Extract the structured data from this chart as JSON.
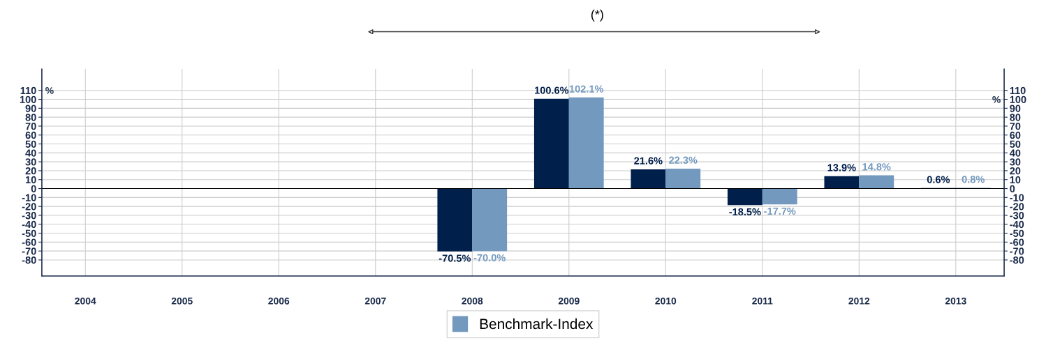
{
  "chart_data": {
    "type": "bar",
    "categories": [
      "2004",
      "2005",
      "2006",
      "2007",
      "2008",
      "2009",
      "2010",
      "2011",
      "2012",
      "2013"
    ],
    "series": [
      {
        "color": "#001f4b",
        "values": [
          null,
          null,
          null,
          null,
          -70.5,
          100.6,
          21.6,
          -18.5,
          13.9,
          0.6
        ],
        "value_labels": [
          null,
          null,
          null,
          null,
          "-70.5%",
          "100.6%",
          "21.6%",
          "-18.5%",
          "13.9%",
          "0.6%"
        ]
      },
      {
        "name": "Benchmark-Index",
        "color": "#7399bf",
        "values": [
          null,
          null,
          null,
          null,
          -70.0,
          102.1,
          22.3,
          -17.7,
          14.8,
          0.8
        ],
        "value_labels": [
          null,
          null,
          null,
          null,
          "-70.0%",
          "102.1%",
          "22.3%",
          "-17.7%",
          "14.8%",
          "0.8%"
        ]
      }
    ],
    "ylabel": "%",
    "y2label": "%",
    "ylim": [
      -98,
      134
    ],
    "yticks": [
      -80,
      -70,
      -60,
      -50,
      -40,
      -30,
      -20,
      -10,
      0,
      10,
      20,
      30,
      40,
      50,
      60,
      70,
      80,
      90,
      100,
      110
    ],
    "y2lim": [
      -98,
      134
    ],
    "y2ticks": [
      -80,
      -70,
      -60,
      -50,
      -40,
      -30,
      -20,
      -10,
      0,
      10,
      20,
      30,
      40,
      50,
      60,
      70,
      80,
      90,
      100,
      110
    ],
    "annotations": [
      "(*)"
    ],
    "grid": true,
    "legend": "bottom"
  }
}
